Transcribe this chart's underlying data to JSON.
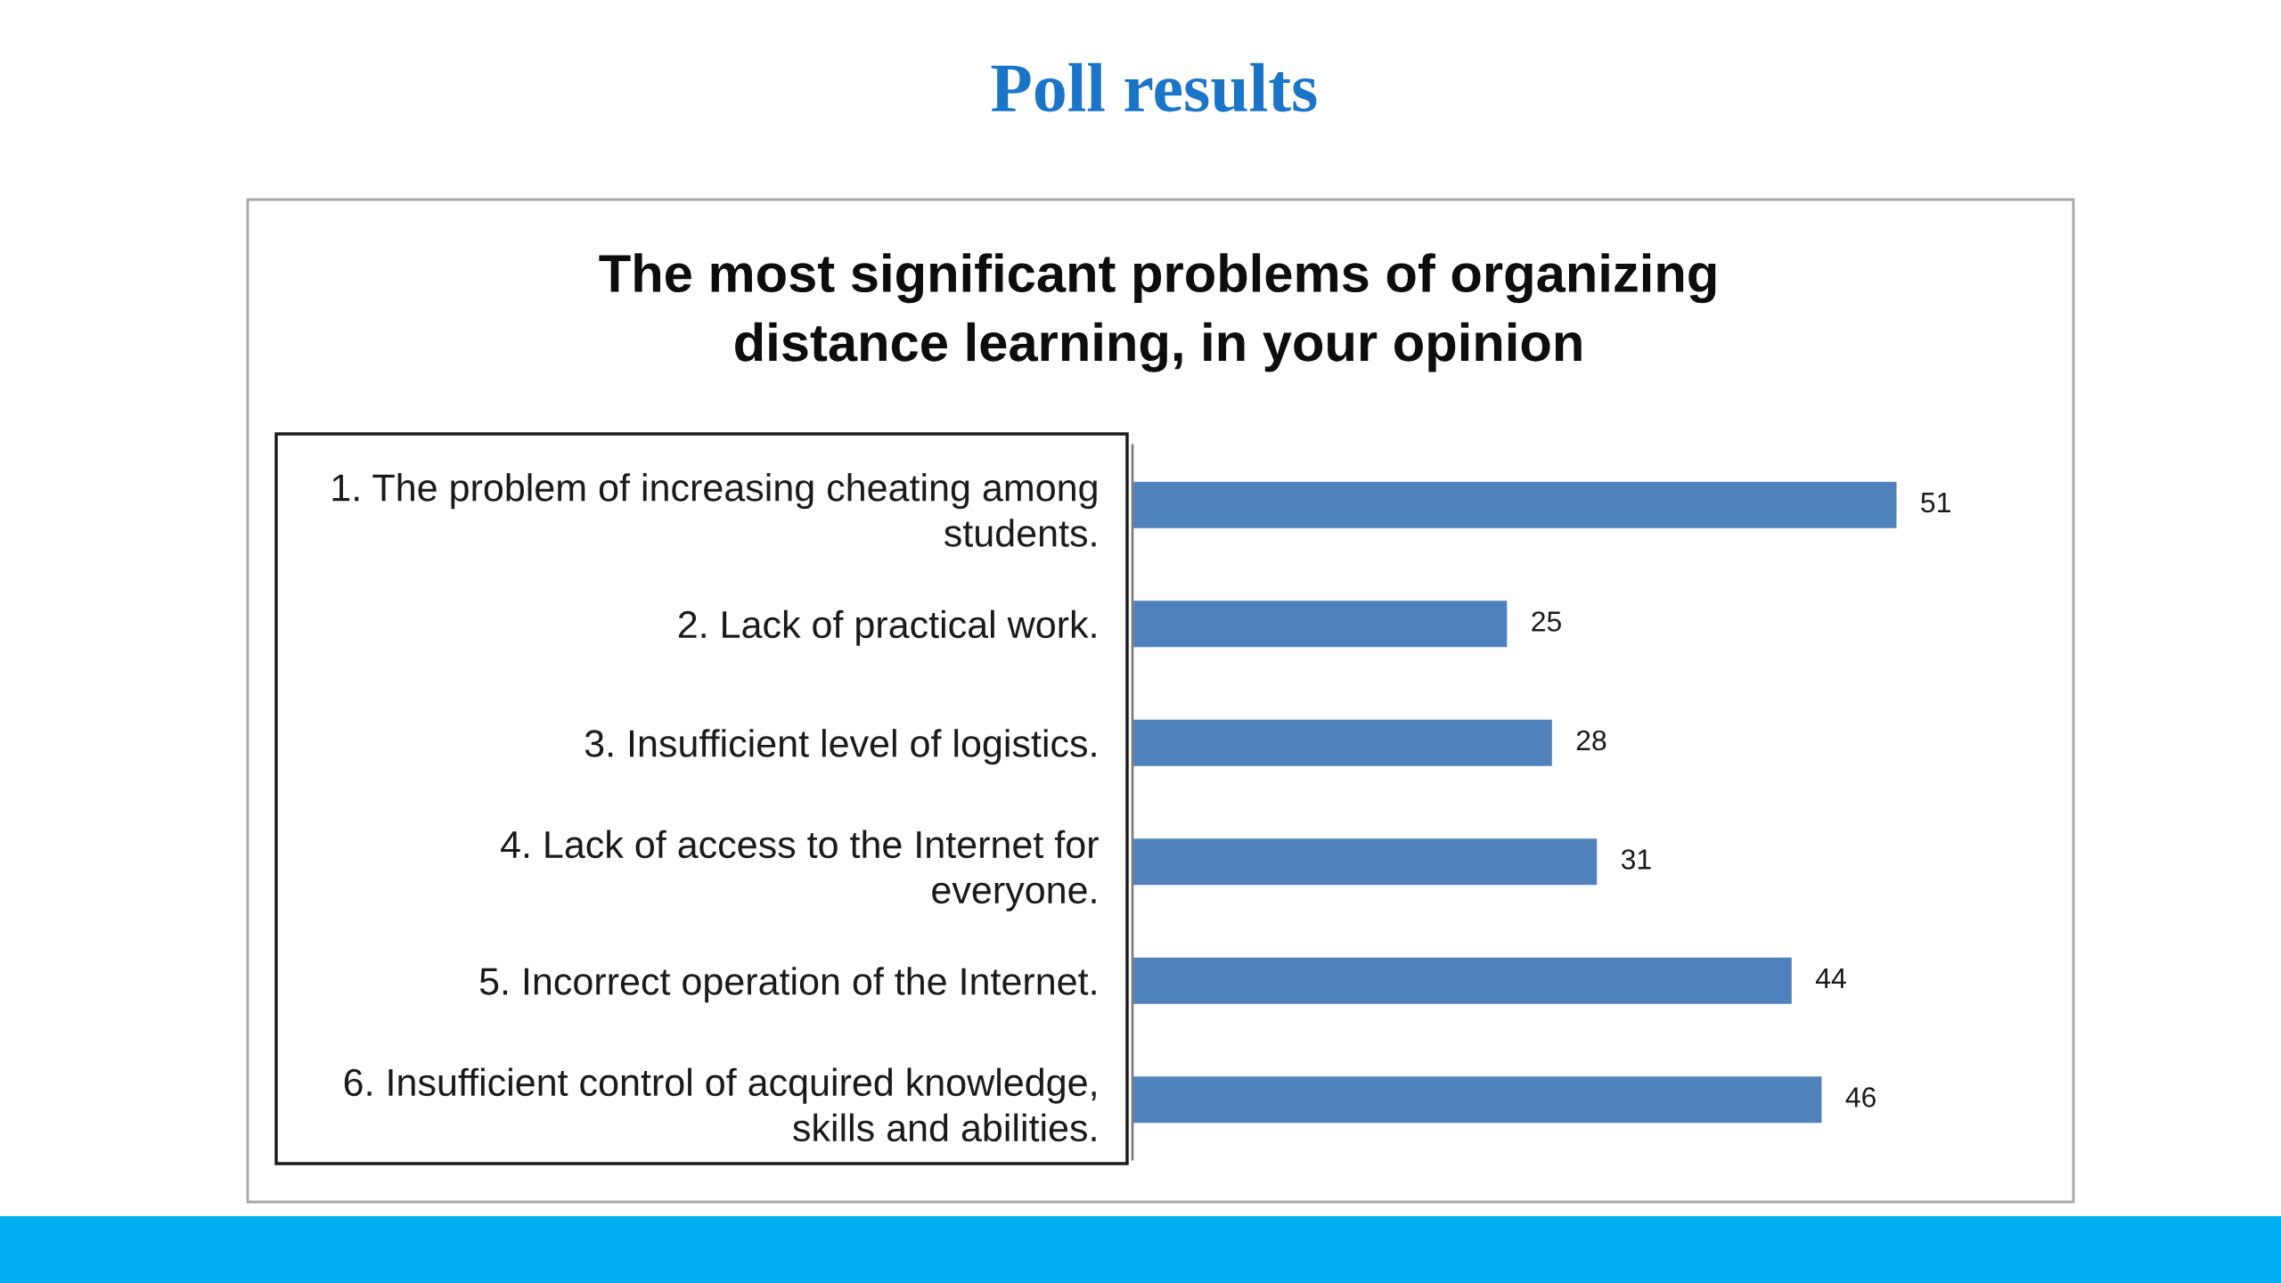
{
  "chart_data": {
    "type": "bar",
    "orientation": "horizontal",
    "title": "Poll results",
    "subtitle": "The most significant problems of organizing distance learning, in your opinion",
    "categories": [
      "1. The problem of increasing cheating among\nstudents.",
      "2. Lack of practical work.",
      "3. Insufficient level of logistics.",
      "4. Lack of access to the Internet for\neveryone.",
      "5. Incorrect operation of the Internet.",
      "6. Insufficient control of acquired knowledge,\nskills and abilities."
    ],
    "values": [
      51,
      25,
      28,
      31,
      44,
      46
    ],
    "color": "#4f81bd",
    "data_labels": true,
    "tick_labels": "y"
  }
}
